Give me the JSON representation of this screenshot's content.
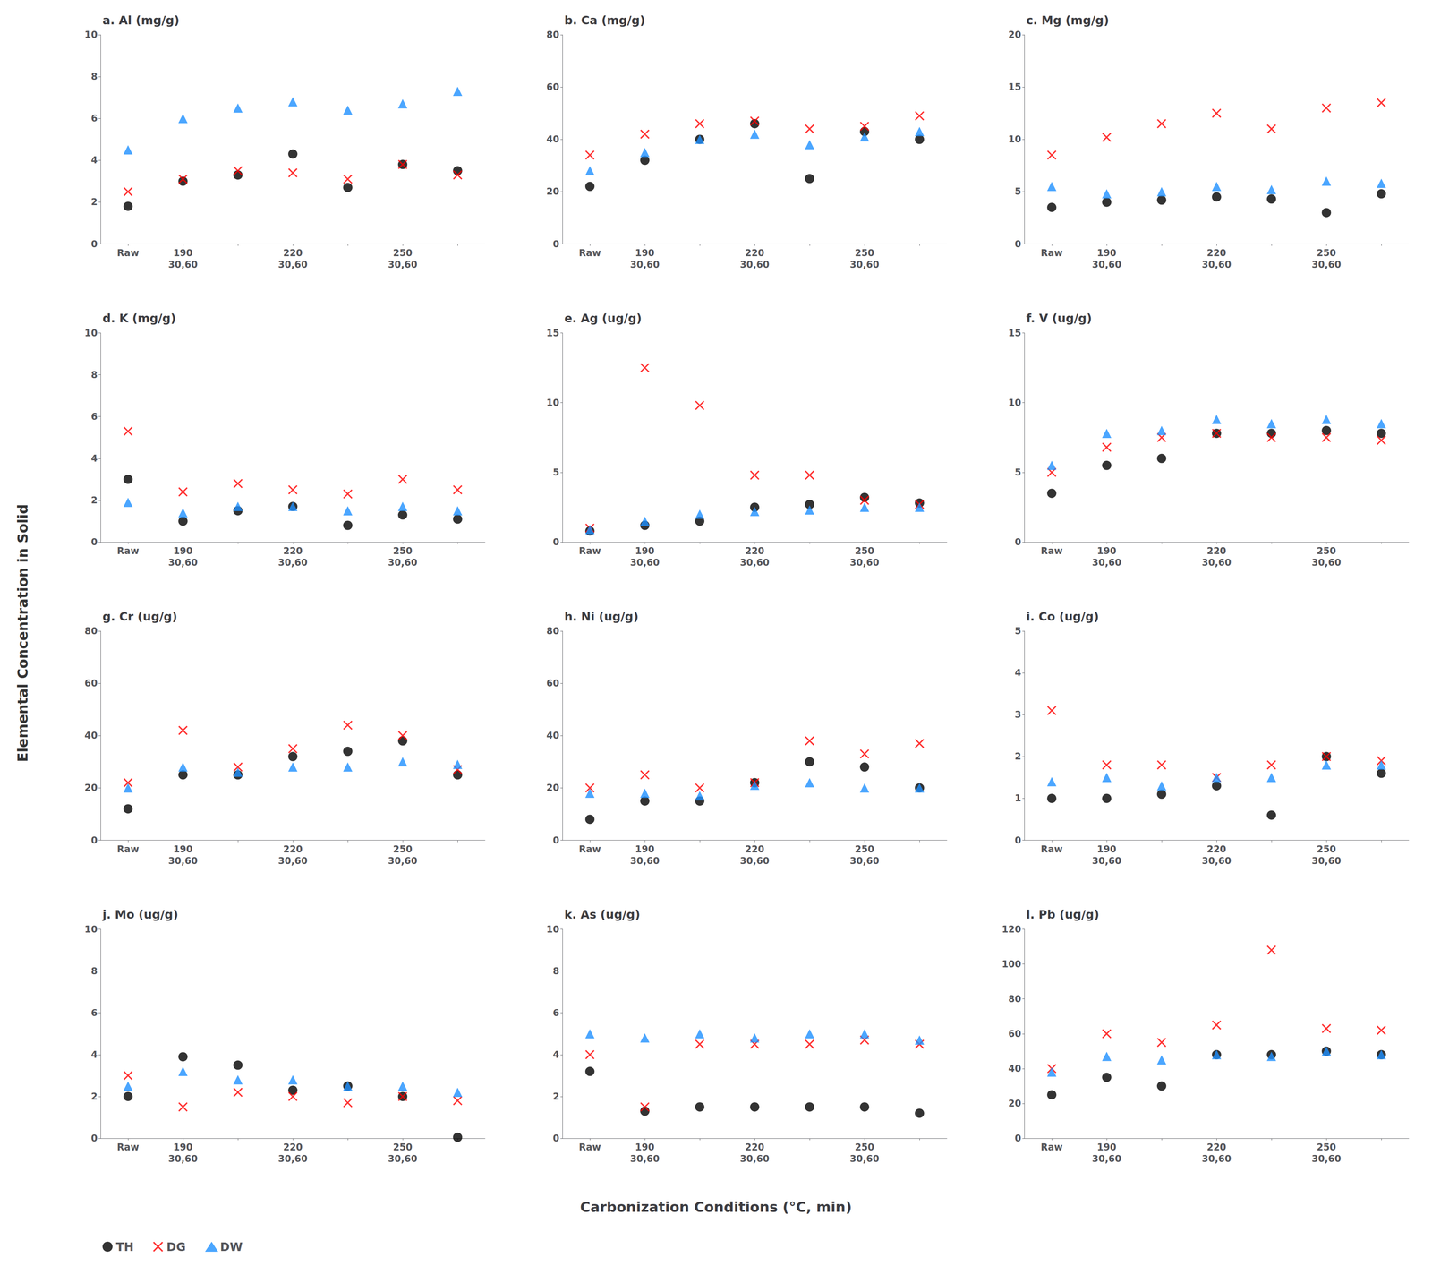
{
  "xlabel": "Carbonization Conditions (°C, min)",
  "ylabel": "Elemental Concentration in Solid",
  "legend": "lower left",
  "chart_data": [
    {
      "type": "scatter",
      "title": "a. Al (mg/g)",
      "categories": [
        "Raw",
        "190\n30,60",
        null,
        "220\n30,60",
        null,
        "250\n30,60",
        null
      ],
      "ylim": [
        0,
        10
      ],
      "yticks": [
        0,
        2,
        4,
        6,
        8,
        10
      ],
      "grid": false,
      "series": [
        {
          "name": "TH",
          "color": "#000000",
          "marker": "circle",
          "values": [
            1.8,
            3.0,
            3.3,
            4.3,
            2.7,
            3.8,
            3.5
          ]
        },
        {
          "name": "DG",
          "color": "#ff0000",
          "marker": "x",
          "values": [
            2.5,
            3.1,
            3.5,
            3.4,
            3.1,
            3.8,
            3.3
          ]
        },
        {
          "name": "DW",
          "color": "#1e90ff",
          "marker": "triangle",
          "values": [
            4.5,
            6.0,
            6.5,
            6.8,
            6.4,
            6.7,
            7.3
          ]
        }
      ]
    },
    {
      "type": "scatter",
      "title": "b. Ca (mg/g)",
      "categories": [
        "Raw",
        "190\n30,60",
        null,
        "220\n30,60",
        null,
        "250\n30,60",
        null
      ],
      "ylim": [
        0,
        80
      ],
      "yticks": [
        0,
        20,
        40,
        60,
        80
      ],
      "grid": false,
      "series": [
        {
          "name": "TH",
          "color": "#000000",
          "marker": "circle",
          "values": [
            22,
            32,
            40,
            46,
            25,
            43,
            40
          ]
        },
        {
          "name": "DG",
          "color": "#ff0000",
          "marker": "x",
          "values": [
            34,
            42,
            46,
            47,
            44,
            45,
            49
          ]
        },
        {
          "name": "DW",
          "color": "#1e90ff",
          "marker": "triangle",
          "values": [
            28,
            35,
            40,
            42,
            38,
            41,
            43
          ]
        }
      ]
    },
    {
      "type": "scatter",
      "title": "c. Mg (mg/g)",
      "categories": [
        "Raw",
        "190\n30,60",
        null,
        "220\n30,60",
        null,
        "250\n30,60",
        null
      ],
      "ylim": [
        0,
        20
      ],
      "yticks": [
        0,
        5,
        10,
        15,
        20
      ],
      "grid": false,
      "series": [
        {
          "name": "TH",
          "color": "#000000",
          "marker": "circle",
          "values": [
            3.5,
            4.0,
            4.2,
            4.5,
            4.3,
            3.0,
            4.8
          ]
        },
        {
          "name": "DG",
          "color": "#ff0000",
          "marker": "x",
          "values": [
            8.5,
            10.2,
            11.5,
            12.5,
            11.0,
            13.0,
            13.5
          ]
        },
        {
          "name": "DW",
          "color": "#1e90ff",
          "marker": "triangle",
          "values": [
            5.5,
            4.8,
            5.0,
            5.5,
            5.2,
            6.0,
            5.8
          ]
        }
      ]
    },
    {
      "type": "scatter",
      "title": "d. K (mg/g)",
      "categories": [
        "Raw",
        "190\n30,60",
        null,
        "220\n30,60",
        null,
        "250\n30,60",
        null
      ],
      "ylim": [
        0,
        10
      ],
      "yticks": [
        0,
        2,
        4,
        6,
        8,
        10
      ],
      "grid": false,
      "series": [
        {
          "name": "TH",
          "color": "#000000",
          "marker": "circle",
          "values": [
            3.0,
            1.0,
            1.5,
            1.7,
            0.8,
            1.3,
            1.1
          ]
        },
        {
          "name": "DG",
          "color": "#ff0000",
          "marker": "x",
          "values": [
            5.3,
            2.4,
            2.8,
            2.5,
            2.3,
            3.0,
            2.5
          ]
        },
        {
          "name": "DW",
          "color": "#1e90ff",
          "marker": "triangle",
          "values": [
            1.9,
            1.4,
            1.7,
            1.7,
            1.5,
            1.7,
            1.5
          ]
        }
      ]
    },
    {
      "type": "scatter",
      "title": "e. Ag (ug/g)",
      "categories": [
        "Raw",
        "190\n30,60",
        null,
        "220\n30,60",
        null,
        "250\n30,60",
        null
      ],
      "ylim": [
        0,
        15
      ],
      "yticks": [
        0,
        5,
        10,
        15
      ],
      "grid": false,
      "series": [
        {
          "name": "TH",
          "color": "#000000",
          "marker": "circle",
          "values": [
            0.8,
            1.2,
            1.5,
            2.5,
            2.7,
            3.2,
            2.8
          ]
        },
        {
          "name": "DG",
          "color": "#ff0000",
          "marker": "x",
          "values": [
            1.0,
            12.5,
            9.8,
            4.8,
            4.8,
            3.0,
            2.7
          ]
        },
        {
          "name": "DW",
          "color": "#1e90ff",
          "marker": "triangle",
          "values": [
            0.9,
            1.5,
            2.0,
            2.2,
            2.3,
            2.5,
            2.5
          ]
        }
      ]
    },
    {
      "type": "scatter",
      "title": "f. V (ug/g)",
      "categories": [
        "Raw",
        "190\n30,60",
        null,
        "220\n30,60",
        null,
        "250\n30,60",
        null
      ],
      "ylim": [
        0,
        15
      ],
      "yticks": [
        0,
        5,
        10,
        15
      ],
      "grid": false,
      "series": [
        {
          "name": "TH",
          "color": "#000000",
          "marker": "circle",
          "values": [
            3.5,
            5.5,
            6.0,
            7.8,
            7.8,
            8.0,
            7.8
          ]
        },
        {
          "name": "DG",
          "color": "#ff0000",
          "marker": "x",
          "values": [
            5.0,
            6.8,
            7.5,
            7.8,
            7.5,
            7.5,
            7.3
          ]
        },
        {
          "name": "DW",
          "color": "#1e90ff",
          "marker": "triangle",
          "values": [
            5.5,
            7.8,
            8.0,
            8.8,
            8.5,
            8.8,
            8.5
          ]
        }
      ]
    },
    {
      "type": "scatter",
      "title": "g. Cr (ug/g)",
      "categories": [
        "Raw",
        "190\n30,60",
        null,
        "220\n30,60",
        null,
        "250\n30,60",
        null
      ],
      "ylim": [
        0,
        80
      ],
      "yticks": [
        0,
        20,
        40,
        60,
        80
      ],
      "grid": false,
      "series": [
        {
          "name": "TH",
          "color": "#000000",
          "marker": "circle",
          "values": [
            12,
            25,
            25,
            32,
            34,
            38,
            25
          ]
        },
        {
          "name": "DG",
          "color": "#ff0000",
          "marker": "x",
          "values": [
            22,
            42,
            28,
            35,
            44,
            40,
            27
          ]
        },
        {
          "name": "DW",
          "color": "#1e90ff",
          "marker": "triangle",
          "values": [
            20,
            28,
            26,
            28,
            28,
            30,
            29
          ]
        }
      ]
    },
    {
      "type": "scatter",
      "title": "h. Ni (ug/g)",
      "categories": [
        "Raw",
        "190\n30,60",
        null,
        "220\n30,60",
        null,
        "250\n30,60",
        null
      ],
      "ylim": [
        0,
        80
      ],
      "yticks": [
        0,
        20,
        40,
        60,
        80
      ],
      "grid": false,
      "series": [
        {
          "name": "TH",
          "color": "#000000",
          "marker": "circle",
          "values": [
            8,
            15,
            15,
            22,
            30,
            28,
            20
          ]
        },
        {
          "name": "DG",
          "color": "#ff0000",
          "marker": "x",
          "values": [
            20,
            25,
            20,
            22,
            38,
            33,
            37
          ]
        },
        {
          "name": "DW",
          "color": "#1e90ff",
          "marker": "triangle",
          "values": [
            18,
            18,
            17,
            21,
            22,
            20,
            20
          ]
        }
      ]
    },
    {
      "type": "scatter",
      "title": "i. Co (ug/g)",
      "categories": [
        "Raw",
        "190\n30,60",
        null,
        "220\n30,60",
        null,
        "250\n30,60",
        null
      ],
      "ylim": [
        0,
        5
      ],
      "yticks": [
        0,
        1,
        2,
        3,
        4,
        5
      ],
      "grid": false,
      "series": [
        {
          "name": "TH",
          "color": "#000000",
          "marker": "circle",
          "values": [
            1.0,
            1.0,
            1.1,
            1.3,
            0.6,
            2.0,
            1.6
          ]
        },
        {
          "name": "DG",
          "color": "#ff0000",
          "marker": "x",
          "values": [
            3.1,
            1.8,
            1.8,
            1.5,
            1.8,
            2.0,
            1.9
          ]
        },
        {
          "name": "DW",
          "color": "#1e90ff",
          "marker": "triangle",
          "values": [
            1.4,
            1.5,
            1.3,
            1.5,
            1.5,
            1.8,
            1.8
          ]
        }
      ]
    },
    {
      "type": "scatter",
      "title": "j. Mo (ug/g)",
      "categories": [
        "Raw",
        "190\n30,60",
        null,
        "220\n30,60",
        null,
        "250\n30,60",
        null
      ],
      "ylim": [
        0,
        10
      ],
      "yticks": [
        0,
        2,
        4,
        6,
        8,
        10
      ],
      "grid": false,
      "series": [
        {
          "name": "TH",
          "color": "#000000",
          "marker": "circle",
          "values": [
            2.0,
            3.9,
            3.5,
            2.3,
            2.5,
            2.0,
            0.05
          ]
        },
        {
          "name": "DG",
          "color": "#ff0000",
          "marker": "x",
          "values": [
            3.0,
            1.5,
            2.2,
            2.0,
            1.7,
            2.0,
            1.8
          ]
        },
        {
          "name": "DW",
          "color": "#1e90ff",
          "marker": "triangle",
          "values": [
            2.5,
            3.2,
            2.8,
            2.8,
            2.5,
            2.5,
            2.2
          ]
        }
      ]
    },
    {
      "type": "scatter",
      "title": "k. As (ug/g)",
      "categories": [
        "Raw",
        "190\n30,60",
        null,
        "220\n30,60",
        null,
        "250\n30,60",
        null
      ],
      "ylim": [
        0,
        10
      ],
      "yticks": [
        0,
        2,
        4,
        6,
        8,
        10
      ],
      "grid": false,
      "series": [
        {
          "name": "TH",
          "color": "#000000",
          "marker": "circle",
          "values": [
            3.2,
            1.3,
            1.5,
            1.5,
            1.5,
            1.5,
            1.2
          ]
        },
        {
          "name": "DG",
          "color": "#ff0000",
          "marker": "x",
          "values": [
            4.0,
            1.5,
            4.5,
            4.5,
            4.5,
            4.7,
            4.5
          ]
        },
        {
          "name": "DW",
          "color": "#1e90ff",
          "marker": "triangle",
          "values": [
            5.0,
            4.8,
            5.0,
            4.8,
            5.0,
            5.0,
            4.7
          ]
        }
      ]
    },
    {
      "type": "scatter",
      "title": "l. Pb (ug/g)",
      "categories": [
        "Raw",
        "190\n30,60",
        null,
        "220\n30,60",
        null,
        "250\n30,60",
        null
      ],
      "ylim": [
        0,
        120
      ],
      "yticks": [
        0,
        20,
        40,
        60,
        80,
        100,
        120
      ],
      "grid": false,
      "series": [
        {
          "name": "TH",
          "color": "#000000",
          "marker": "circle",
          "values": [
            25,
            35,
            30,
            48,
            48,
            50,
            48
          ]
        },
        {
          "name": "DG",
          "color": "#ff0000",
          "marker": "x",
          "values": [
            40,
            60,
            55,
            65,
            108,
            63,
            62
          ]
        },
        {
          "name": "DW",
          "color": "#1e90ff",
          "marker": "triangle",
          "values": [
            38,
            47,
            45,
            48,
            47,
            50,
            48
          ]
        }
      ]
    }
  ]
}
